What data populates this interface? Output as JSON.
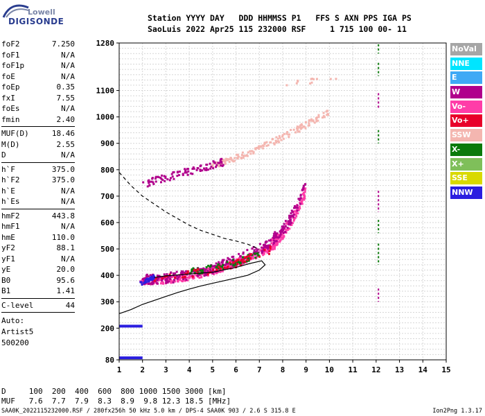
{
  "logo": {
    "line1": "Lowell",
    "line2": "DIGISONDE"
  },
  "header": {
    "line1": "Station YYYY DAY   DDD HHMMSS P1   FFS S AXN PPS IGA PS",
    "line2": "SaoLuis 2022 Apr25 115 232000 RSF     1 715 100 00- 11"
  },
  "params": {
    "group1": [
      {
        "k": "foF2",
        "v": "7.250"
      },
      {
        "k": "foF1",
        "v": "N/A"
      },
      {
        "k": "foF1p",
        "v": "N/A"
      },
      {
        "k": "foE",
        "v": "N/A"
      },
      {
        "k": "foEp",
        "v": "0.35"
      },
      {
        "k": "fxI",
        "v": "7.55"
      },
      {
        "k": "foEs",
        "v": "N/A"
      },
      {
        "k": "fmin",
        "v": "2.40"
      }
    ],
    "group2": [
      {
        "k": "MUF(D)",
        "v": "18.46"
      },
      {
        "k": "M(D)",
        "v": "2.55"
      },
      {
        "k": "D",
        "v": "N/A"
      }
    ],
    "group3": [
      {
        "k": "h`F",
        "v": "375.0"
      },
      {
        "k": "h`F2",
        "v": "375.0"
      },
      {
        "k": "h`E",
        "v": "N/A"
      },
      {
        "k": "h`Es",
        "v": "N/A"
      }
    ],
    "group4": [
      {
        "k": "hmF2",
        "v": "443.8"
      },
      {
        "k": "hmF1",
        "v": "N/A"
      },
      {
        "k": "hmE",
        "v": "110.0"
      },
      {
        "k": "yF2",
        "v": "88.1"
      },
      {
        "k": "yF1",
        "v": "N/A"
      },
      {
        "k": "yE",
        "v": "20.0"
      },
      {
        "k": "B0",
        "v": "95.6"
      },
      {
        "k": "B1",
        "v": "1.41"
      }
    ],
    "group5": [
      {
        "k": "C-level",
        "v": "44"
      }
    ],
    "auto": {
      "line1": "Auto:",
      "line2": "Artist5",
      "line3": "500200"
    }
  },
  "legend": [
    {
      "label": "NoVal",
      "color": "#a6a6a6"
    },
    {
      "label": "NNE",
      "color": "#00e5ff"
    },
    {
      "label": "E",
      "color": "#3fa9f5"
    },
    {
      "label": "W",
      "color": "#b0008c"
    },
    {
      "label": "Vo-",
      "color": "#ff3da8"
    },
    {
      "label": "Vo+",
      "color": "#e8002a"
    },
    {
      "label": "SSW",
      "color": "#f4b6b0"
    },
    {
      "label": "X-",
      "color": "#0b7a0b"
    },
    {
      "label": "X+",
      "color": "#7fbf5a"
    },
    {
      "label": "SSE",
      "color": "#d9d900"
    },
    {
      "label": "NNW",
      "color": "#2b1ee0"
    }
  ],
  "footer": {
    "line1": "D     100  200  400  600  800 1000 1500 3000 [km]",
    "line2": "MUF   7.6  7.7  7.9  8.3  8.9  9.8 12.3 18.5 [MHz]"
  },
  "bottom": {
    "left": "SAA0K_2022115232000.RSF / 280fx256h 50 kHz 5.0 km / DPS-4 SAA0K 903 / 2.6 S 315.8 E",
    "right": "Ion2Png 1.3.17"
  },
  "chart_data": {
    "type": "scatter",
    "xlim": [
      1,
      15
    ],
    "ylim": [
      80,
      1280
    ],
    "x_ticks": [
      1,
      2,
      3,
      4,
      5,
      6,
      7,
      8,
      9,
      10,
      11,
      12,
      13,
      14,
      15
    ],
    "y_ticks": [
      80,
      200,
      300,
      400,
      500,
      600,
      700,
      800,
      900,
      1000,
      1100,
      1280
    ],
    "grid": true,
    "x_tick_labels": [
      "1",
      "2",
      "3",
      "4",
      "5",
      "6",
      "7",
      "8",
      "9",
      "10",
      "11",
      "12",
      "13",
      "14",
      "15"
    ],
    "y_tick_labels": [
      "80",
      "200",
      "300",
      "400",
      "500",
      "600",
      "700",
      "800",
      "900",
      "1000",
      "1100",
      "1280"
    ],
    "profile_line": [
      [
        1.0,
        255
      ],
      [
        1.5,
        270
      ],
      [
        2.0,
        290
      ],
      [
        2.5,
        305
      ],
      [
        3.0,
        320
      ],
      [
        3.5,
        335
      ],
      [
        4.0,
        348
      ],
      [
        4.5,
        360
      ],
      [
        5.0,
        370
      ],
      [
        5.5,
        380
      ],
      [
        6.0,
        390
      ],
      [
        6.5,
        400
      ],
      [
        7.0,
        420
      ],
      [
        7.25,
        440
      ],
      [
        7.1,
        455
      ],
      [
        6.6,
        445
      ],
      [
        6.0,
        430
      ],
      [
        5.0,
        412
      ],
      [
        4.0,
        405
      ],
      [
        3.0,
        398
      ],
      [
        2.5,
        392
      ]
    ],
    "dashed_line": [
      [
        1.0,
        790
      ],
      [
        1.5,
        740
      ],
      [
        2.0,
        700
      ],
      [
        2.5,
        670
      ],
      [
        3.0,
        640
      ],
      [
        3.5,
        615
      ],
      [
        4.0,
        590
      ],
      [
        4.5,
        570
      ],
      [
        5.0,
        555
      ],
      [
        5.5,
        540
      ],
      [
        6.0,
        530
      ],
      [
        6.5,
        518
      ],
      [
        7.0,
        500
      ]
    ],
    "traces": [
      {
        "name": "o1",
        "color": "#ff3da8",
        "x_from": 1.9,
        "x_to": 7.8,
        "y_from": 378,
        "y_to": 520,
        "curve": 2.0,
        "n": 360,
        "spread": 14
      },
      {
        "name": "o1w",
        "color": "#b0008c",
        "x_from": 2.0,
        "x_to": 7.8,
        "y_from": 385,
        "y_to": 540,
        "curve": 2.0,
        "n": 260,
        "spread": 20
      },
      {
        "name": "o1g",
        "color": "#0b7a0b",
        "x_from": 4.0,
        "x_to": 7.0,
        "y_from": 415,
        "y_to": 480,
        "curve": 1.5,
        "n": 70,
        "spread": 12
      },
      {
        "name": "o1x",
        "color": "#e8002a",
        "x_from": 2.5,
        "x_to": 7.5,
        "y_from": 395,
        "y_to": 500,
        "curve": 2.0,
        "n": 60,
        "spread": 16
      },
      {
        "name": "o1t",
        "color": "#ff3da8",
        "x_from": 7.5,
        "x_to": 9.0,
        "y_from": 520,
        "y_to": 720,
        "curve": 1.5,
        "n": 120,
        "spread": 20
      },
      {
        "name": "o1tw",
        "color": "#b0008c",
        "x_from": 7.6,
        "x_to": 9.0,
        "y_from": 540,
        "y_to": 740,
        "curve": 1.5,
        "n": 80,
        "spread": 22
      },
      {
        "name": "o2",
        "color": "#f4b6b0",
        "x_from": 5.0,
        "x_to": 10.0,
        "y_from": 820,
        "y_to": 1020,
        "curve": 1.3,
        "n": 160,
        "spread": 12
      },
      {
        "name": "o2w",
        "color": "#b0008c",
        "x_from": 2.0,
        "x_to": 5.5,
        "y_from": 745,
        "y_to": 830,
        "curve": 1.0,
        "n": 90,
        "spread": 14
      },
      {
        "name": "o3",
        "color": "#f4b6b0",
        "x_from": 8.0,
        "x_to": 10.5,
        "y_from": 1120,
        "y_to": 1150,
        "curve": 1.0,
        "n": 12,
        "spread": 10
      },
      {
        "name": "nnw",
        "color": "#2b1ee0",
        "x_from": 1.9,
        "x_to": 2.5,
        "y_from": 368,
        "y_to": 395,
        "curve": 1.0,
        "n": 40,
        "spread": 8
      }
    ],
    "bars": [
      {
        "x": 1.0,
        "x2": 2.0,
        "y": 85,
        "color": "#2b1ee0"
      },
      {
        "x": 1.0,
        "x2": 2.0,
        "y": 205,
        "color": "#2b1ee0"
      }
    ],
    "tick_marks_col": {
      "x": 12.1,
      "segments": [
        [
          1240,
          1275,
          "#0b7a0b"
        ],
        [
          1155,
          1205,
          "#0b7a0b"
        ],
        [
          1030,
          1090,
          "#b0008c"
        ],
        [
          900,
          950,
          "#0b7a0b"
        ],
        [
          640,
          720,
          "#b0008c"
        ],
        [
          560,
          610,
          "#0b7a0b"
        ],
        [
          440,
          520,
          "#0b7a0b"
        ],
        [
          300,
          350,
          "#b0008c"
        ]
      ]
    }
  }
}
